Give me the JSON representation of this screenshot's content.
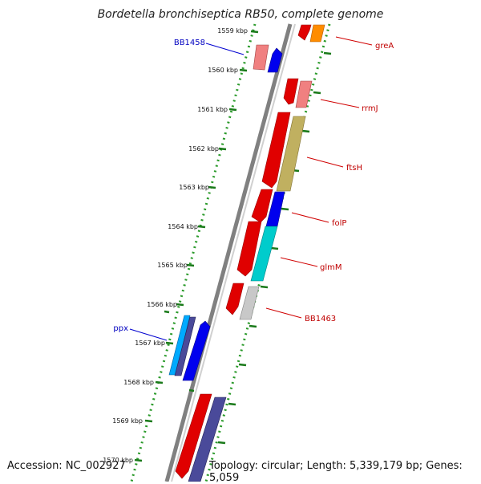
{
  "title": "Bordetella bronchiseptica RB50, complete genome",
  "accession": "Accession: NC_002927",
  "summary": "Topology: circular; Length: 5,339,179 bp; Genes: 5,059",
  "colors": {
    "backbone": "#808080",
    "tick": "#1a7a1a",
    "dot": "#2a9a2a",
    "label_red": "#c00000",
    "label_blue": "#0000c0"
  },
  "ticks": [
    {
      "label": "1559 kbp"
    },
    {
      "label": "1560 kbp"
    },
    {
      "label": "1561 kbp"
    },
    {
      "label": "1562 kbp"
    },
    {
      "label": "1563 kbp"
    },
    {
      "label": "1564 kbp"
    },
    {
      "label": "1565 kbp"
    },
    {
      "label": "1566 kbp"
    },
    {
      "label": "1567 kbp"
    },
    {
      "label": "1568 kbp"
    },
    {
      "label": "1569 kbp"
    },
    {
      "label": "1570 kbp"
    }
  ],
  "gene_labels": [
    {
      "name": "greA",
      "color": "#c00000"
    },
    {
      "name": "rrmJ",
      "color": "#c00000"
    },
    {
      "name": "ftsH",
      "color": "#c00000"
    },
    {
      "name": "folP",
      "color": "#c00000"
    },
    {
      "name": "glmM",
      "color": "#c00000"
    },
    {
      "name": "BB1463",
      "color": "#c00000"
    },
    {
      "name": "BB1458",
      "color": "#0000c0"
    },
    {
      "name": "ppx",
      "color": "#0000c0"
    }
  ]
}
